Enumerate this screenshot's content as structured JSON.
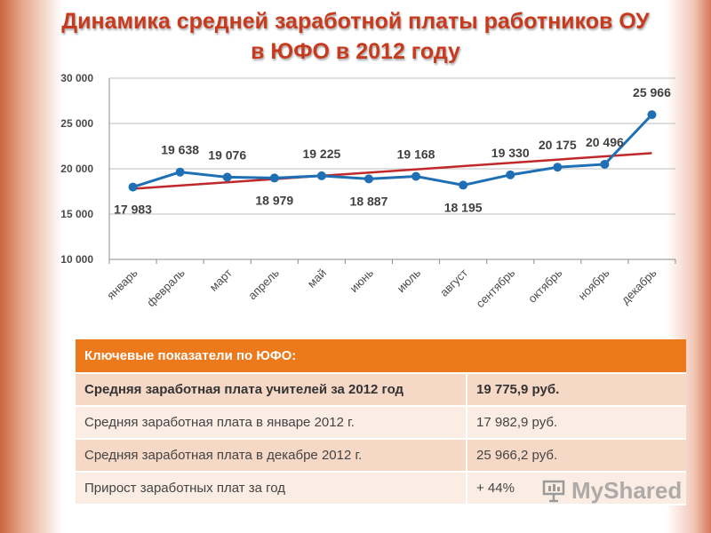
{
  "title": {
    "line1": "Динамика средней заработной платы работников ОУ",
    "line2": "в ЮФО в 2012 году"
  },
  "colors": {
    "title": "#c83a1e",
    "series_line": "#1f6fb5",
    "trend_line": "#c0282a",
    "table_header": "#ec7a1c"
  },
  "chart_data": {
    "type": "line",
    "categories": [
      "январь",
      "февраль",
      "март",
      "апрель",
      "май",
      "июнь",
      "июль",
      "август",
      "сентябрь",
      "октябрь",
      "ноябрь",
      "декабрь"
    ],
    "series": [
      {
        "values": [
          17983,
          19638,
          19076,
          18979,
          19225,
          18887,
          19168,
          18195,
          19330,
          20175,
          20496,
          25966
        ],
        "labels": [
          "17 983",
          "19 638",
          "19 076",
          "18 979",
          "19 225",
          "18 887",
          "19 168",
          "18 195",
          "19 330",
          "20 175",
          "20 496",
          "25 966"
        ]
      }
    ],
    "trendline": {
      "type": "linear"
    },
    "ylim": [
      10000,
      30000
    ],
    "yticks": [
      10000,
      15000,
      20000,
      25000,
      30000
    ],
    "ytick_labels": [
      "10 000",
      "15 000",
      "20 000",
      "25 000",
      "30 000"
    ],
    "grid": true,
    "legend": "none"
  },
  "table": {
    "header": "Ключевые показатели по ЮФО:",
    "rows": [
      {
        "label": "Средняя заработная плата учителей за 2012 год",
        "value": "19 775,9 руб."
      },
      {
        "label": "Средняя заработная плата в январе 2012 г.",
        "value": "17 982,9 руб."
      },
      {
        "label": "Средняя заработная плата в декабре 2012 г.",
        "value": "25 966,2 руб."
      },
      {
        "label": "Прирост заработных плат за год",
        "value": "+ 44%"
      }
    ]
  },
  "watermark": {
    "text": "MyShared"
  }
}
